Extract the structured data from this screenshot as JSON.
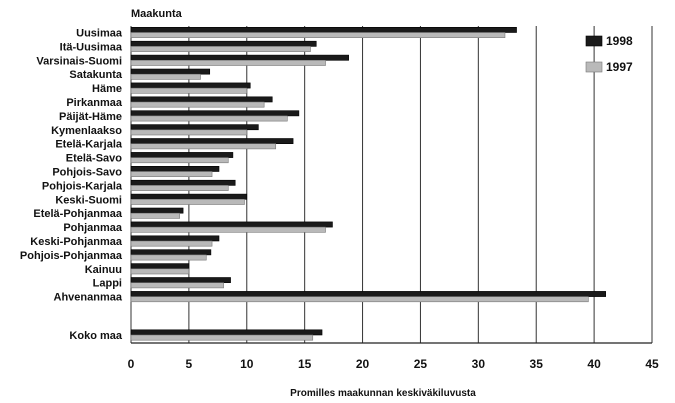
{
  "chart_data": {
    "type": "bar",
    "orientation": "horizontal",
    "title": "Maakunta",
    "xlabel": "Promilles maakunnan keskiväkiluvusta",
    "ylabel": "Maakunta",
    "xlim": [
      0,
      45
    ],
    "xticks": [
      0,
      5,
      10,
      15,
      20,
      25,
      30,
      35,
      40,
      45
    ],
    "grid": true,
    "legend_position": "right",
    "categories": [
      "Uusimaa",
      "Itä-Uusimaa",
      "Varsinais-Suomi",
      "Satakunta",
      "Häme",
      "Pirkanmaa",
      "Päijät-Häme",
      "Kymenlaakso",
      "Etelä-Karjala",
      "Etelä-Savo",
      "Pohjois-Savo",
      "Pohjois-Karjala",
      "Keski-Suomi",
      "Etelä-Pohjanmaa",
      "Pohjanmaa",
      "Keski-Pohjanmaa",
      "Pohjois-Pohjanmaa",
      "Kainuu",
      "Lappi",
      "Ahvenanmaa",
      "Koko maa"
    ],
    "series": [
      {
        "name": "1998",
        "color": "#1a1a1a",
        "values": [
          33.3,
          16.0,
          18.8,
          6.8,
          10.3,
          12.2,
          14.5,
          11.0,
          14.0,
          8.8,
          7.6,
          9.0,
          10.0,
          4.5,
          17.4,
          7.6,
          6.9,
          5.0,
          8.6,
          41.0,
          16.5
        ]
      },
      {
        "name": "1997",
        "color": "#b9b9b9",
        "values": [
          32.3,
          15.5,
          16.8,
          6.0,
          10.0,
          11.5,
          13.5,
          10.0,
          12.5,
          8.4,
          7.0,
          8.4,
          9.8,
          4.2,
          16.8,
          7.0,
          6.5,
          5.0,
          8.0,
          39.5,
          15.7
        ]
      }
    ]
  }
}
